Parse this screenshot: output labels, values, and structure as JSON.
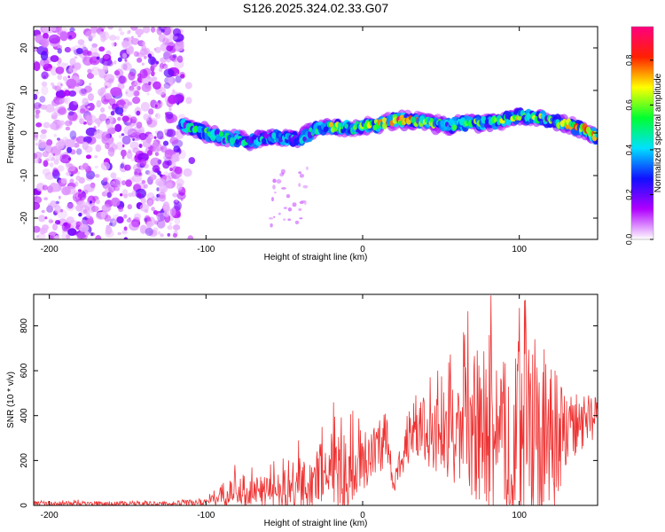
{
  "title": "S126.2025.324.02.33.G07",
  "chart_data": [
    {
      "type": "heatmap",
      "title": "S126.2025.324.02.33.G07",
      "xlabel": "Height of straight line (km)",
      "ylabel": "Frequency (Hz)",
      "xlim": [
        -210,
        150
      ],
      "ylim": [
        -25,
        25
      ],
      "xticks": [
        -200,
        -100,
        0,
        100
      ],
      "yticks": [
        -20,
        -10,
        0,
        10,
        20
      ],
      "colorbar": {
        "label": "Normalized spectral amplitude",
        "range": [
          0,
          0.95
        ],
        "ticks": [
          "0.0",
          "0.2",
          "0.4",
          "0.6",
          "0.8"
        ],
        "tick_values": [
          0,
          0.2,
          0.4,
          0.6,
          0.8
        ],
        "colors": [
          "#ffffff",
          "#b000ff",
          "#1010ff",
          "#00e0ff",
          "#00ff30",
          "#ffff00",
          "#ff2000",
          "#ff0080"
        ]
      },
      "ridge": {
        "x": [
          -115,
          -100,
          -90,
          -80,
          -70,
          -60,
          -50,
          -40,
          -30,
          -20,
          -10,
          0,
          10,
          20,
          30,
          40,
          50,
          60,
          70,
          80,
          90,
          100,
          110,
          120,
          130,
          140,
          150
        ],
        "freq": [
          1.5,
          0,
          -1,
          -1.5,
          -2,
          -1,
          -1,
          -1.5,
          1,
          1.5,
          1,
          1.5,
          2,
          3,
          3,
          2.5,
          2,
          2,
          2.5,
          2.5,
          3,
          4,
          3.5,
          3,
          2,
          1,
          -1
        ],
        "peak": [
          0.45,
          0.55,
          0.5,
          0.45,
          0.5,
          0.4,
          0.45,
          0.4,
          0.55,
          0.7,
          0.6,
          0.6,
          0.75,
          0.9,
          0.75,
          0.65,
          0.55,
          0.55,
          0.6,
          0.6,
          0.65,
          0.7,
          0.65,
          0.6,
          0.7,
          0.8,
          0.75
        ]
      },
      "noise_region_x": [
        -210,
        -115
      ]
    },
    {
      "type": "line",
      "xlabel": "Height of straight line (km)",
      "ylabel": "SNR (10 * v/v)",
      "xlim": [
        -210,
        150
      ],
      "ylim": [
        0,
        940
      ],
      "xticks": [
        -200,
        -100,
        0,
        100
      ],
      "yticks": [
        0,
        200,
        400,
        600,
        800
      ],
      "color": "#ee3333",
      "envelope": {
        "x": [
          -210,
          -120,
          -100,
          -90,
          -80,
          -60,
          -45,
          -40,
          -30,
          -20,
          -10,
          0,
          10,
          15,
          20,
          30,
          40,
          50,
          60,
          70,
          80,
          90,
          100,
          110,
          120,
          130,
          140,
          150
        ],
        "base": [
          8,
          8,
          15,
          50,
          70,
          60,
          70,
          70,
          120,
          180,
          120,
          200,
          270,
          300,
          80,
          350,
          330,
          320,
          340,
          320,
          330,
          300,
          320,
          300,
          280,
          330,
          370,
          390
        ],
        "amp": [
          10,
          12,
          25,
          50,
          70,
          70,
          120,
          150,
          120,
          180,
          200,
          150,
          140,
          120,
          40,
          150,
          160,
          180,
          250,
          350,
          400,
          350,
          380,
          420,
          350,
          200,
          120,
          100
        ]
      },
      "peaks": [
        {
          "x": 82,
          "y": 935
        },
        {
          "x": 104,
          "y": 915
        },
        {
          "x": 100,
          "y": 880
        },
        {
          "x": 65,
          "y": 760
        },
        {
          "x": 73,
          "y": 690
        },
        {
          "x": 110,
          "y": 740
        },
        {
          "x": -18,
          "y": 395
        },
        {
          "x": -41,
          "y": 290
        },
        {
          "x": 34,
          "y": 490
        }
      ]
    }
  ]
}
